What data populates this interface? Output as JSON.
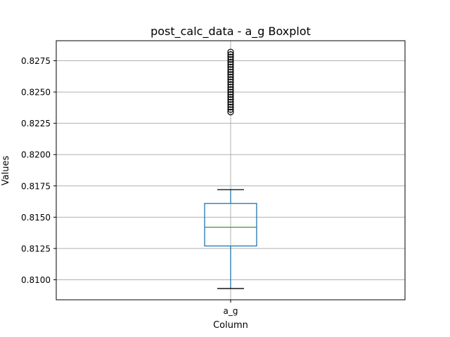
{
  "chart_data": {
    "type": "boxplot",
    "title": "post_calc_data - a_g Boxplot",
    "xlabel": "Column",
    "ylabel": "Values",
    "categories": [
      "a_g"
    ],
    "ylim": [
      0.8084,
      0.8291
    ],
    "yticks": [
      0.81,
      0.8125,
      0.815,
      0.8175,
      0.82,
      0.8225,
      0.825,
      0.8275
    ],
    "ytick_labels": [
      "0.8100",
      "0.8125",
      "0.8150",
      "0.8175",
      "0.8200",
      "0.8225",
      "0.8250",
      "0.8275"
    ],
    "grid": true,
    "boxes": [
      {
        "category": "a_g",
        "whisker_low": 0.8093,
        "q1": 0.8127,
        "median": 0.8142,
        "q3": 0.8161,
        "whisker_high": 0.8172,
        "outliers": [
          0.8234,
          0.8236,
          0.8238,
          0.824,
          0.8242,
          0.8244,
          0.8246,
          0.8248,
          0.825,
          0.8252,
          0.8254,
          0.8256,
          0.8258,
          0.826,
          0.8262,
          0.8264,
          0.8266,
          0.8268,
          0.827,
          0.8272,
          0.8274,
          0.8276,
          0.8278,
          0.828,
          0.8282
        ]
      }
    ],
    "colors": {
      "box": "#1f77b4",
      "median": "#2ca02c",
      "whisker_cap": "#000000",
      "outlier": "#000000",
      "grid": "#b0b0b0"
    }
  }
}
